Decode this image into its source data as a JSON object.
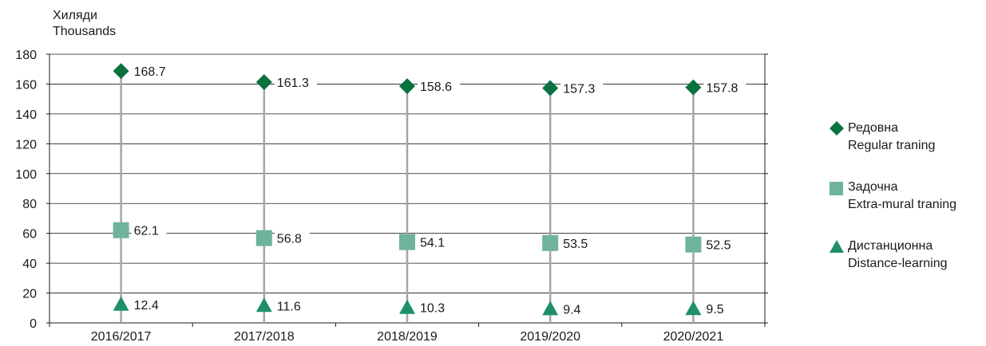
{
  "unit_label": {
    "line1": "Хиляди",
    "line2": "Thousands"
  },
  "chart_data": {
    "type": "scatter",
    "categories": [
      "2016/2017",
      "2017/2018",
      "2018/2019",
      "2019/2020",
      "2020/2021"
    ],
    "ylim": [
      0,
      180
    ],
    "yticks": [
      0,
      20,
      40,
      60,
      80,
      100,
      120,
      140,
      160,
      180
    ],
    "grid": true,
    "legend_position": "right",
    "series": [
      {
        "name": "Редовна",
        "name_en": "Regular traning",
        "marker": "diamond",
        "color": "#0a7240",
        "values": [
          168.7,
          161.3,
          158.6,
          157.3,
          157.8
        ]
      },
      {
        "name": "Задочна",
        "name_en": "Extra-mural traning",
        "marker": "square",
        "color": "#6fb39a",
        "values": [
          62.1,
          56.8,
          54.1,
          53.5,
          52.5
        ]
      },
      {
        "name": "Дистанционна",
        "name_en": "Distance-learning",
        "marker": "triangle",
        "color": "#1f8f6a",
        "values": [
          12.4,
          11.6,
          10.3,
          9.4,
          9.5
        ]
      }
    ],
    "colors": {
      "grid": "#1a1a1a",
      "connector": "#a6a6a6"
    }
  }
}
